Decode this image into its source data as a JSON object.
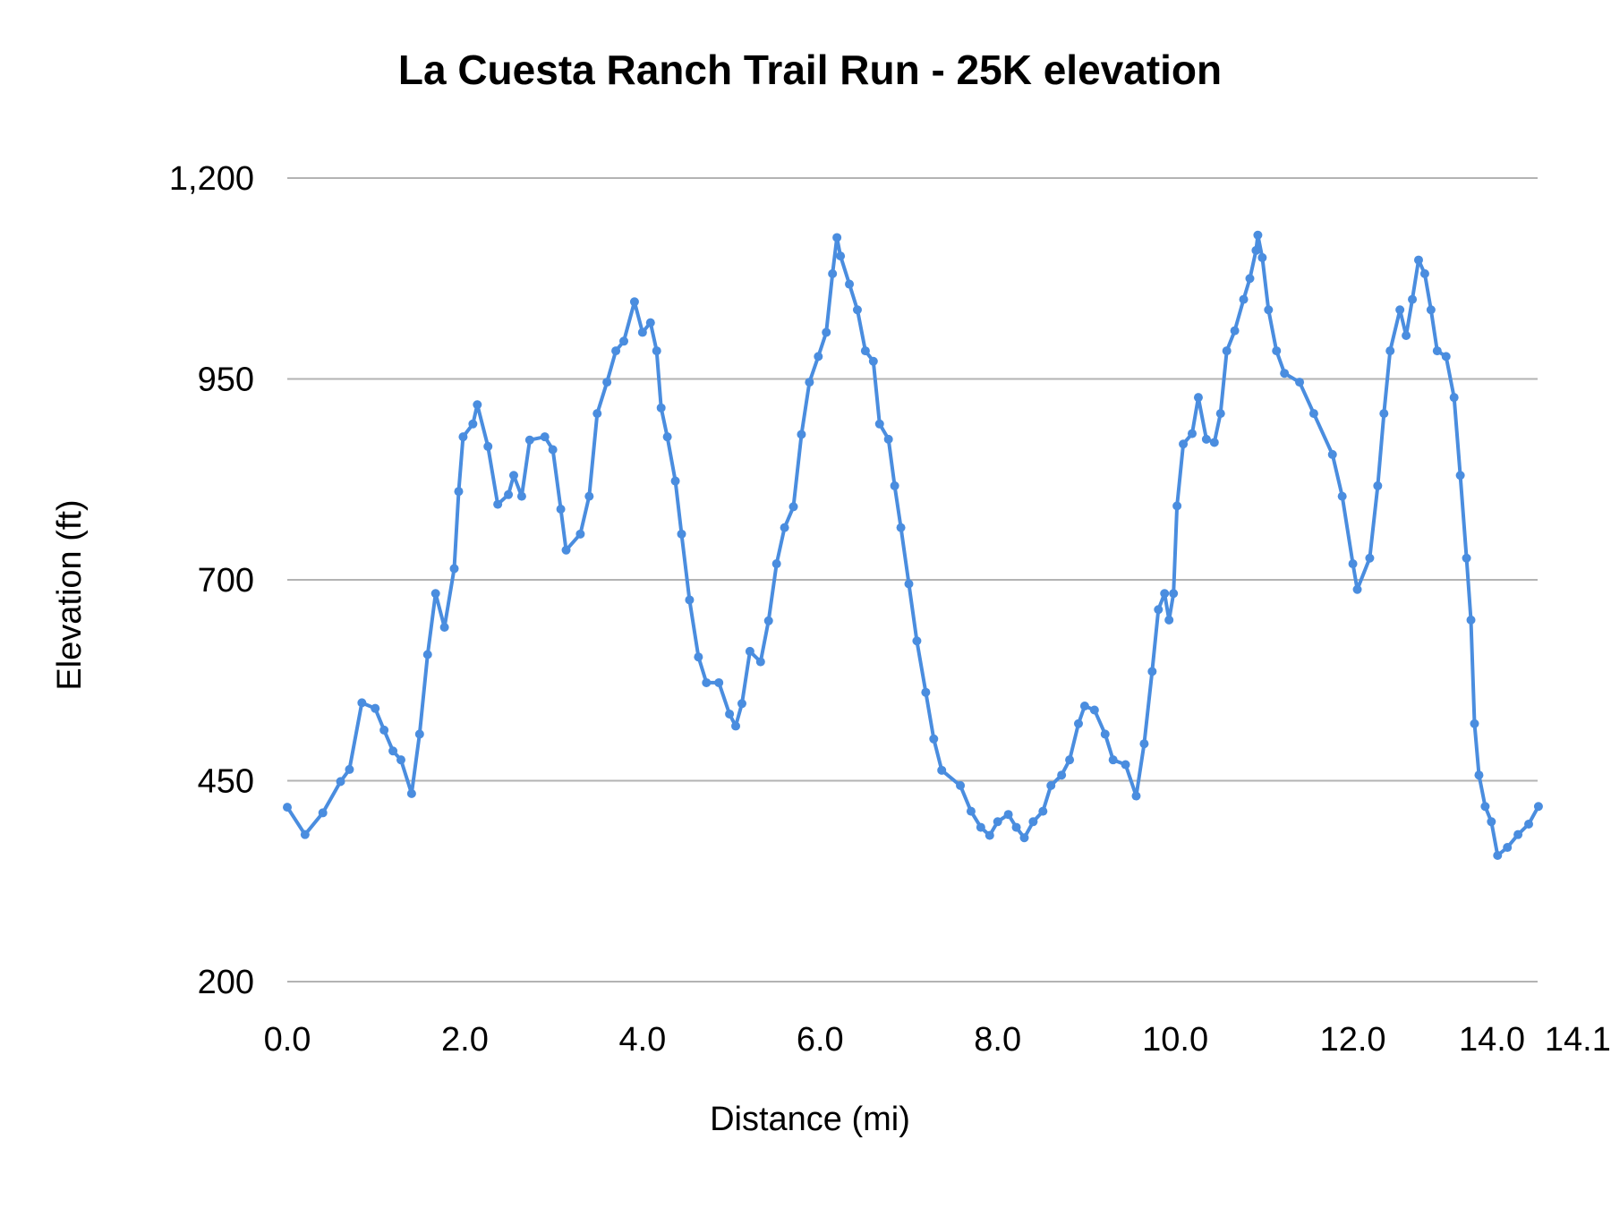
{
  "chart_data": {
    "type": "line",
    "title": "La Cuesta Ranch Trail Run - 25K elevation",
    "xlabel": "Distance (mi)",
    "ylabel": "Elevation (ft)",
    "xlim": [
      0,
      14.1
    ],
    "ylim": [
      200,
      1200
    ],
    "x_ticks": [
      "0.0",
      "2.0",
      "4.0",
      "6.0",
      "8.0",
      "10.0",
      "12.0",
      "14.0",
      "14.1"
    ],
    "x_tick_values": [
      0,
      2,
      4,
      6,
      8,
      10,
      12,
      14,
      14.1
    ],
    "y_ticks": [
      "200",
      "450",
      "700",
      "950",
      "1,200"
    ],
    "y_tick_values": [
      200,
      450,
      700,
      950,
      1200
    ],
    "grid": true,
    "markers": true,
    "line_color": "#4a8ddf",
    "series": [
      {
        "x": [
          0,
          0.2,
          0.4,
          0.6,
          0.7,
          0.84,
          0.99,
          1.09,
          1.19,
          1.28,
          1.4,
          1.49,
          1.58,
          1.67,
          1.77,
          1.88,
          1.93,
          1.98,
          2.09,
          2.14,
          2.26,
          2.37,
          2.49,
          2.55,
          2.64,
          2.73,
          2.9,
          2.99,
          3.08,
          3.14,
          3.3,
          3.4,
          3.49,
          3.6,
          3.7,
          3.79,
          3.91,
          4.0,
          4.09,
          4.16,
          4.21,
          4.28,
          4.37,
          4.44,
          4.53,
          4.63,
          4.72,
          4.86,
          4.98,
          5.05,
          5.12,
          5.21,
          5.33,
          5.42,
          5.51,
          5.6,
          5.7,
          5.79,
          5.88,
          5.98,
          6.07,
          6.14,
          6.19,
          6.23,
          6.33,
          6.42,
          6.51,
          6.6,
          6.67,
          6.77,
          6.84,
          6.91,
          7.0,
          7.09,
          7.19,
          7.28,
          7.37,
          7.58,
          7.7,
          7.81,
          7.91,
          8.0,
          8.12,
          8.21,
          8.3,
          8.4,
          8.51,
          8.6,
          8.72,
          8.81,
          8.91,
          8.98,
          9.09,
          9.21,
          9.3,
          9.44,
          9.56,
          9.65,
          9.74,
          9.81,
          9.88,
          9.93,
          9.98,
          10.02,
          10.09,
          10.19,
          10.26,
          10.35,
          10.44,
          10.51,
          10.58,
          10.67,
          10.77,
          10.84,
          10.91,
          10.93,
          10.98,
          11.05,
          11.14,
          11.23,
          11.4,
          11.56,
          11.77,
          11.88,
          12.0,
          12.05,
          12.19,
          12.28,
          12.35,
          12.42,
          12.53,
          12.6,
          12.67,
          12.74,
          12.81,
          12.88,
          12.95,
          13.05,
          13.14,
          13.21,
          13.28,
          13.33,
          13.37,
          13.42,
          13.49,
          13.56,
          13.63,
          13.74,
          13.86,
          13.98,
          14.09
        ],
        "y": [
          417,
          383,
          410,
          449,
          464,
          547,
          540,
          513,
          487,
          476,
          434,
          508,
          607,
          683,
          641,
          714,
          810,
          878,
          894,
          918,
          866,
          794,
          806,
          830,
          804,
          874,
          878,
          862,
          788,
          737,
          757,
          804,
          907,
          946,
          985,
          997,
          1046,
          1008,
          1020,
          985,
          914,
          878,
          823,
          757,
          675,
          604,
          572,
          572,
          533,
          518,
          546,
          611,
          598,
          649,
          720,
          765,
          791,
          881,
          946,
          978,
          1008,
          1081,
          1126,
          1103,
          1068,
          1036,
          985,
          972,
          894,
          875,
          817,
          765,
          695,
          624,
          560,
          502,
          463,
          444,
          412,
          392,
          382,
          399,
          408,
          392,
          379,
          399,
          412,
          444,
          457,
          476,
          521,
          543,
          538,
          508,
          476,
          470,
          431,
          496,
          586,
          663,
          683,
          650,
          683,
          792,
          869,
          882,
          927,
          875,
          871,
          907,
          985,
          1010,
          1049,
          1075,
          1110,
          1129,
          1101,
          1036,
          985,
          957,
          946,
          907,
          856,
          804,
          720,
          688,
          727,
          817,
          907,
          985,
          1036,
          1004,
          1049,
          1098,
          1081,
          1036,
          985,
          978,
          927,
          830,
          727,
          650,
          521,
          457,
          418,
          399,
          357,
          367,
          383,
          396,
          418
        ]
      }
    ]
  }
}
